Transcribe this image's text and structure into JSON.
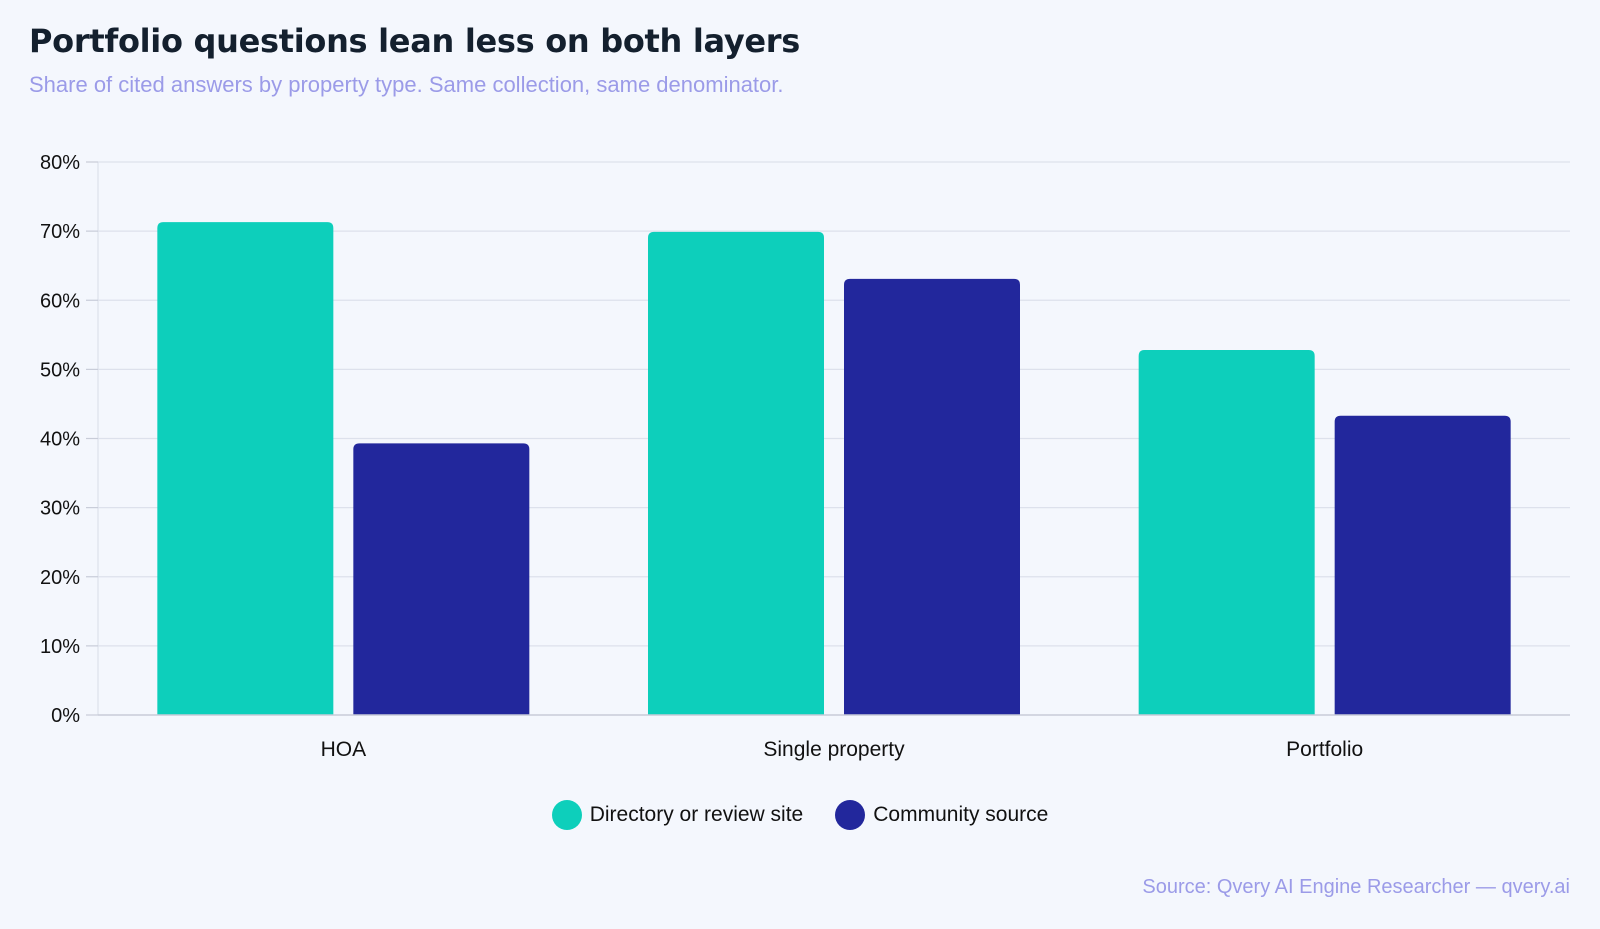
{
  "chart_data": {
    "type": "bar",
    "title": "Portfolio questions lean less on both layers",
    "subtitle": "Share of cited answers by property type. Same collection, same denominator.",
    "categories": [
      "HOA",
      "Single property",
      "Portfolio"
    ],
    "series": [
      {
        "name": "Directory or review site",
        "color": "#0dcfbb",
        "values": [
          71.3,
          69.9,
          52.8
        ]
      },
      {
        "name": "Community source",
        "color": "#22279c",
        "values": [
          39.3,
          63.1,
          43.3
        ]
      }
    ],
    "ylim": [
      0,
      80
    ],
    "yticks": [
      0,
      10,
      20,
      30,
      40,
      50,
      60,
      70,
      80
    ],
    "ytick_suffix": "%",
    "grid": true,
    "legend_position": "bottom-center",
    "source": "Source: Qvery AI Engine Researcher — qvery.ai"
  }
}
